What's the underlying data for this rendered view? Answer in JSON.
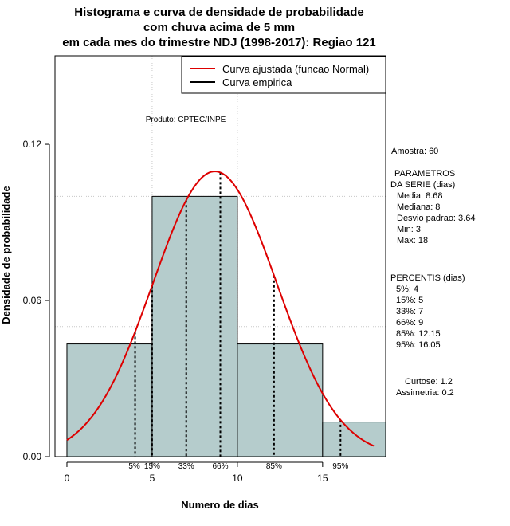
{
  "chart_data": {
    "type": "bar",
    "title_lines": [
      "Histograma e curva de densidade de probabilidade",
      "com chuva acima de 5 mm",
      "em cada mes do trimestre NDJ (1998-2017): Regiao 121"
    ],
    "xlabel": "Numero de dias",
    "ylabel": "Densidade de probabilidade",
    "xlim": [
      -0.7,
      18.7
    ],
    "ylim": [
      0,
      0.154
    ],
    "x_ticks": [
      0,
      5,
      10,
      15
    ],
    "x_tick_labels": [
      "0",
      "5",
      "10",
      "15"
    ],
    "y_ticks": [
      0.0,
      0.06,
      0.12
    ],
    "y_tick_labels": [
      "0.00",
      "0.06",
      "0.12"
    ],
    "grid": true,
    "grid_lines_x": [
      5,
      10
    ],
    "grid_lines_y": [
      0.05,
      0.1
    ],
    "bins": [
      {
        "x0": 0,
        "x1": 5,
        "density": 0.0433
      },
      {
        "x0": 5,
        "x1": 10,
        "density": 0.1
      },
      {
        "x0": 10,
        "x1": 15,
        "density": 0.0433
      },
      {
        "x0": 15,
        "x1": 18.7,
        "density": 0.0133
      }
    ],
    "bar_color": "#b5cccc",
    "curve_color": "#dd0000",
    "normal_fit": {
      "mean": 8.68,
      "sd": 3.64,
      "x_from": 0,
      "x_to": 18
    },
    "percentile_lines": [
      {
        "x": 4,
        "label": "5%"
      },
      {
        "x": 5,
        "label": "15%"
      },
      {
        "x": 7,
        "label": "33%"
      },
      {
        "x": 9,
        "label": "66%"
      },
      {
        "x": 12.15,
        "label": "85%"
      },
      {
        "x": 16.05,
        "label": "95%"
      }
    ],
    "legend": {
      "position": "top-right",
      "entries": [
        {
          "label": "Curva ajustada (funcao Normal)",
          "color": "#dd0000"
        },
        {
          "label": "Curva empirica",
          "color": "#000000"
        }
      ]
    },
    "annotation": "Produto: CPTEC/INPE"
  },
  "side_panel": {
    "amostra": "Amostra: 60",
    "param_lines": [
      "PARAMETROS",
      "DA SERIE (dias)",
      "Media: 8.68",
      "Mediana: 8",
      "Desvio padrao: 3.64",
      "Min: 3",
      "Max: 18"
    ],
    "percentis_lines": [
      "PERCENTIS (dias)",
      "5%: 4",
      "15%: 5",
      "33%: 7",
      "66%: 9",
      "85%: 12.15",
      "95%: 16.05"
    ],
    "curtose": "Curtose: 1.2",
    "assimetria": "Assimetria: 0.2"
  }
}
